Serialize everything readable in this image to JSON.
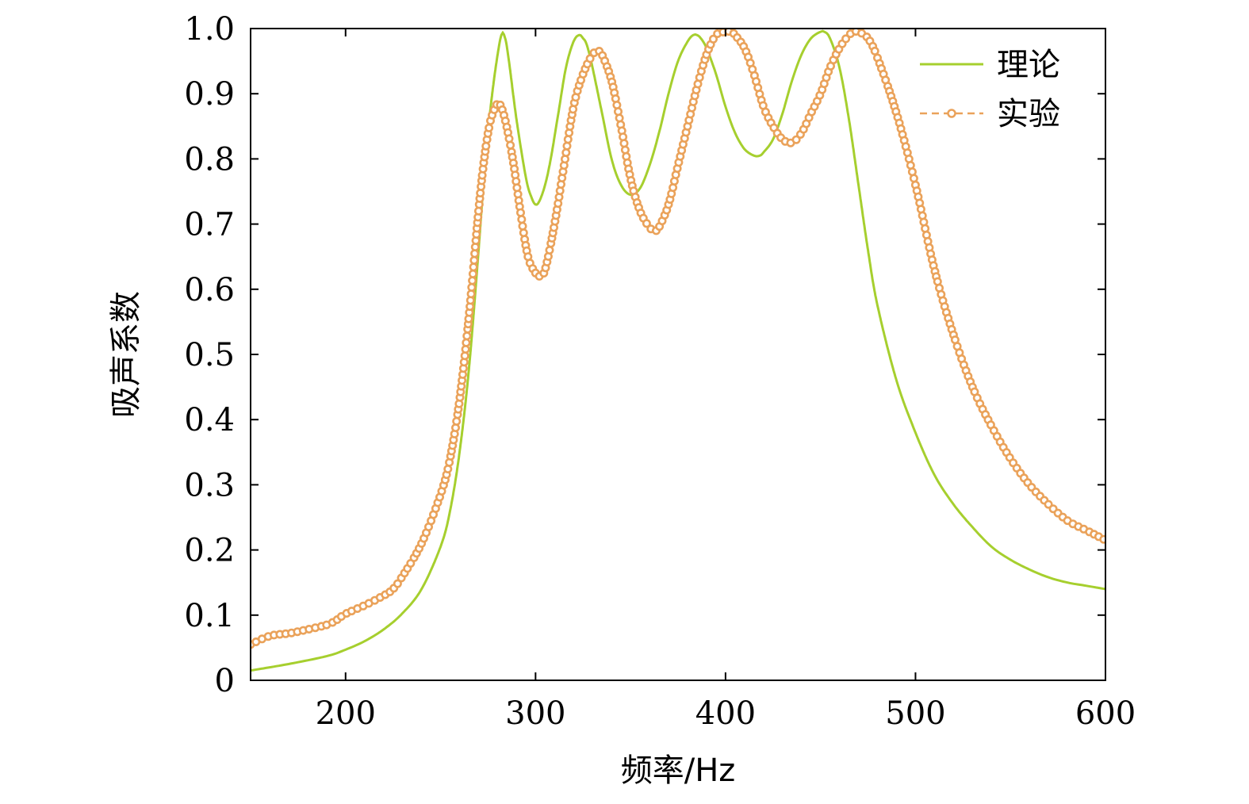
{
  "chart_data": {
    "type": "line",
    "xlabel": "频率/Hz",
    "ylabel": "吸声系数",
    "xlim": [
      150,
      600
    ],
    "ylim": [
      0,
      1.0
    ],
    "xticks": [
      200,
      300,
      400,
      500,
      600
    ],
    "yticks": [
      0,
      0.1,
      0.2,
      0.3,
      0.4,
      0.5,
      0.6,
      0.7,
      0.8,
      0.9,
      1.0
    ],
    "ytick_labels": [
      "0",
      "0.1",
      "0.2",
      "0.3",
      "0.4",
      "0.5",
      "0.6",
      "0.7",
      "0.8",
      "0.9",
      "1.0"
    ],
    "grid": false,
    "legend_position": "top-right",
    "series": [
      {
        "name": "理论",
        "style": "solid-line",
        "color": "#a6cf2e",
        "x": [
          150,
          170,
          190,
          200,
          210,
          220,
          230,
          240,
          250,
          255,
          260,
          265,
          270,
          273,
          276,
          279,
          282,
          284,
          286,
          290,
          295,
          298,
          300,
          302,
          305,
          308,
          312,
          316,
          320,
          323,
          325,
          327,
          330,
          335,
          340,
          345,
          350,
          355,
          360,
          365,
          370,
          375,
          380,
          383,
          385,
          387,
          390,
          395,
          400,
          405,
          410,
          415,
          418,
          420,
          425,
          430,
          435,
          440,
          445,
          450,
          452,
          455,
          460,
          465,
          470,
          475,
          480,
          490,
          500,
          510,
          520,
          530,
          540,
          550,
          560,
          570,
          580,
          590,
          600
        ],
        "y": [
          0.015,
          0.025,
          0.037,
          0.047,
          0.06,
          0.078,
          0.103,
          0.14,
          0.205,
          0.26,
          0.35,
          0.48,
          0.66,
          0.78,
          0.87,
          0.94,
          0.99,
          0.985,
          0.95,
          0.86,
          0.77,
          0.74,
          0.73,
          0.735,
          0.76,
          0.8,
          0.87,
          0.94,
          0.98,
          0.99,
          0.985,
          0.975,
          0.94,
          0.87,
          0.8,
          0.76,
          0.745,
          0.755,
          0.79,
          0.84,
          0.9,
          0.95,
          0.98,
          0.99,
          0.99,
          0.985,
          0.97,
          0.93,
          0.88,
          0.84,
          0.815,
          0.805,
          0.805,
          0.81,
          0.83,
          0.87,
          0.92,
          0.96,
          0.985,
          0.995,
          0.995,
          0.985,
          0.94,
          0.86,
          0.76,
          0.66,
          0.575,
          0.46,
          0.38,
          0.315,
          0.27,
          0.235,
          0.205,
          0.185,
          0.17,
          0.158,
          0.15,
          0.145,
          0.14
        ]
      },
      {
        "name": "实验",
        "style": "dashed-line-with-circles",
        "color": "#eaa25a",
        "x": [
          150,
          160,
          170,
          180,
          190,
          195,
          200,
          210,
          220,
          225,
          230,
          240,
          250,
          255,
          260,
          265,
          270,
          273,
          276,
          279,
          281,
          284,
          288,
          292,
          296,
          300,
          302,
          305,
          310,
          315,
          320,
          325,
          330,
          333,
          335,
          340,
          345,
          350,
          355,
          360,
          363,
          365,
          370,
          375,
          380,
          385,
          390,
          395,
          400,
          403,
          405,
          410,
          415,
          420,
          425,
          430,
          435,
          440,
          445,
          450,
          455,
          460,
          465,
          468,
          470,
          475,
          480,
          490,
          500,
          510,
          520,
          530,
          540,
          550,
          560,
          570,
          580,
          590,
          600
        ],
        "y": [
          0.055,
          0.068,
          0.072,
          0.078,
          0.085,
          0.092,
          0.102,
          0.115,
          0.13,
          0.14,
          0.16,
          0.21,
          0.285,
          0.34,
          0.43,
          0.56,
          0.72,
          0.8,
          0.855,
          0.88,
          0.885,
          0.86,
          0.8,
          0.72,
          0.65,
          0.625,
          0.62,
          0.63,
          0.7,
          0.79,
          0.88,
          0.93,
          0.96,
          0.965,
          0.96,
          0.92,
          0.85,
          0.77,
          0.72,
          0.695,
          0.69,
          0.695,
          0.73,
          0.79,
          0.85,
          0.91,
          0.96,
          0.99,
          0.995,
          0.995,
          0.99,
          0.97,
          0.93,
          0.88,
          0.85,
          0.83,
          0.825,
          0.84,
          0.87,
          0.9,
          0.94,
          0.97,
          0.99,
          0.995,
          0.995,
          0.985,
          0.955,
          0.87,
          0.76,
          0.63,
          0.53,
          0.45,
          0.39,
          0.34,
          0.3,
          0.27,
          0.245,
          0.23,
          0.215
        ]
      }
    ]
  }
}
